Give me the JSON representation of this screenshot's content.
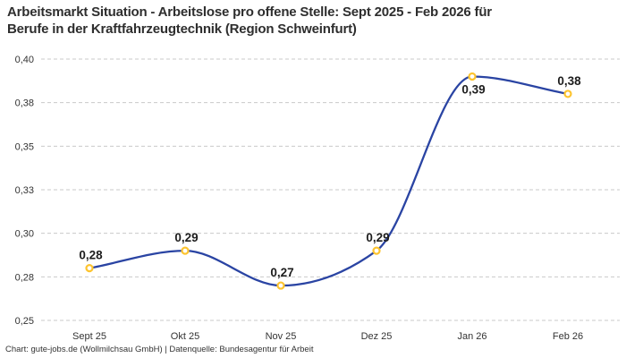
{
  "header": {
    "title_line1": "Arbeitsmarkt Situation - Arbeitslose pro offene Stelle: Sept 2025 - Feb 2026 für",
    "title_line2": "Berufe in der Kraftfahrzeugtechnik (Region Schweinfurt)"
  },
  "footer": {
    "attribution": "Chart: gute-jobs.de (Wollmilchsau GmbH) | Datenquelle: Bundesagentur für Arbeit"
  },
  "chart_data": {
    "type": "line",
    "title": "Arbeitsmarkt Situation - Arbeitslose pro offene Stelle: Sept 2025 - Feb 2026 für Berufe in der Kraftfahrzeugtechnik (Region Schweinfurt)",
    "categories": [
      "Sept 25",
      "Okt 25",
      "Nov 25",
      "Dez 25",
      "Jan 26",
      "Feb 26"
    ],
    "values": [
      0.28,
      0.29,
      0.27,
      0.29,
      0.39,
      0.38
    ],
    "point_labels": [
      "0,28",
      "0,29",
      "0,27",
      "0,29",
      "0,39",
      "0,38"
    ],
    "label_positions": [
      "above",
      "above",
      "above",
      "above",
      "below",
      "above"
    ],
    "xlabel": "",
    "ylabel": "",
    "ylim": [
      0.25,
      0.4
    ],
    "y_ticks": [
      {
        "value": 0.4,
        "label": "0,40"
      },
      {
        "value": 0.375,
        "label": "0,38"
      },
      {
        "value": 0.35,
        "label": "0,35"
      },
      {
        "value": 0.325,
        "label": "0,33"
      },
      {
        "value": 0.3,
        "label": "0,30"
      },
      {
        "value": 0.275,
        "label": "0,28"
      },
      {
        "value": 0.25,
        "label": "0,25"
      }
    ],
    "grid": "dashed-horizontal",
    "legend": "none",
    "colors": {
      "line": "#2a44a3",
      "marker_stroke": "#fdc42f",
      "marker_fill": "#ffffff",
      "grid": "#c9c9c9",
      "tick_text": "#333333",
      "label_text": "#1d1d1d",
      "title_text": "#2e2e2e",
      "background": "#ffffff"
    }
  }
}
